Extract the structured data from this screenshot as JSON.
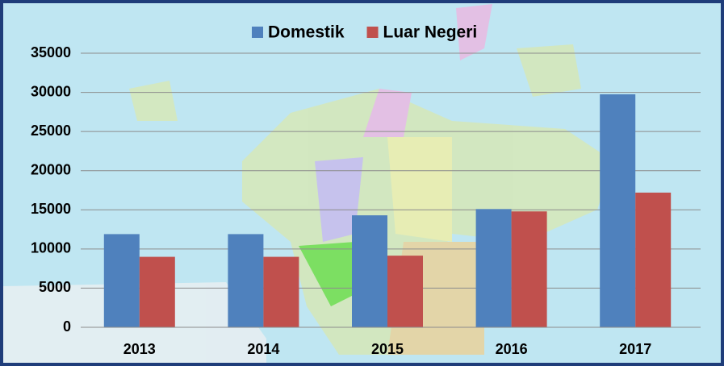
{
  "chart_data": {
    "type": "bar",
    "categories": [
      "2013",
      "2014",
      "2015",
      "2016",
      "2017"
    ],
    "series": [
      {
        "name": "Domestik",
        "color": "#4f81bd",
        "values": [
          11900,
          11900,
          14300,
          15100,
          29750
        ]
      },
      {
        "name": "Luar Negeri",
        "color": "#c0504d",
        "values": [
          9000,
          9000,
          9150,
          14800,
          17200
        ]
      }
    ],
    "ylim": [
      0,
      35000
    ],
    "yticks": [
      0,
      5000,
      10000,
      15000,
      20000,
      25000,
      30000,
      35000
    ],
    "grid": true,
    "legend": "top"
  }
}
